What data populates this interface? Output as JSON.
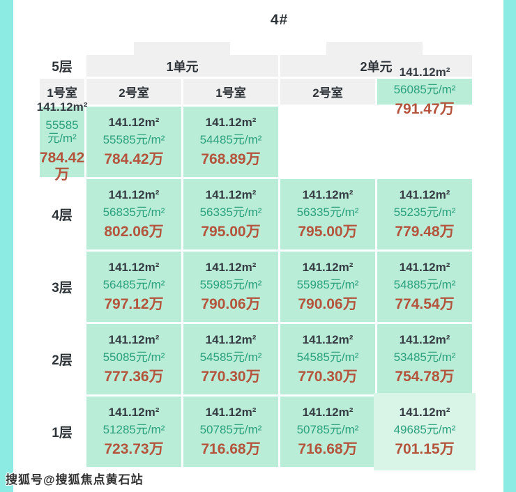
{
  "chart_data": {
    "type": "table",
    "title": "4#",
    "unit_headers": [
      {
        "label": "1单元"
      },
      {
        "label": "2单元"
      }
    ],
    "room_headers": [
      "1号室",
      "2号室",
      "1号室",
      "2号室"
    ],
    "rows": [
      {
        "floor": "5层",
        "cells": [
          {
            "area": "141.12m²",
            "unit_price": "56085元/m²",
            "total": "791.47万"
          },
          {
            "area": "141.12m²",
            "unit_price": "55585元/m²",
            "total": "784.42万"
          },
          {
            "area": "141.12m²",
            "unit_price": "55585元/m²",
            "total": "784.42万"
          },
          {
            "area": "141.12m²",
            "unit_price": "54485元/m²",
            "total": "768.89万"
          }
        ]
      },
      {
        "floor": "4层",
        "cells": [
          {
            "area": "141.12m²",
            "unit_price": "56835元/m²",
            "total": "802.06万"
          },
          {
            "area": "141.12m²",
            "unit_price": "56335元/m²",
            "total": "795.00万"
          },
          {
            "area": "141.12m²",
            "unit_price": "56335元/m²",
            "total": "795.00万"
          },
          {
            "area": "141.12m²",
            "unit_price": "55235元/m²",
            "total": "779.48万"
          }
        ]
      },
      {
        "floor": "3层",
        "cells": [
          {
            "area": "141.12m²",
            "unit_price": "56485元/m²",
            "total": "797.12万"
          },
          {
            "area": "141.12m²",
            "unit_price": "55985元/m²",
            "total": "790.06万"
          },
          {
            "area": "141.12m²",
            "unit_price": "55985元/m²",
            "total": "790.06万"
          },
          {
            "area": "141.12m²",
            "unit_price": "54885元/m²",
            "total": "774.54万"
          }
        ]
      },
      {
        "floor": "2层",
        "cells": [
          {
            "area": "141.12m²",
            "unit_price": "55085元/m²",
            "total": "777.36万"
          },
          {
            "area": "141.12m²",
            "unit_price": "54585元/m²",
            "total": "770.30万"
          },
          {
            "area": "141.12m²",
            "unit_price": "54585元/m²",
            "total": "770.30万"
          },
          {
            "area": "141.12m²",
            "unit_price": "53485元/m²",
            "total": "754.78万"
          }
        ]
      },
      {
        "floor": "1层",
        "cells": [
          {
            "area": "141.12m²",
            "unit_price": "51285元/m²",
            "total": "723.73万"
          },
          {
            "area": "141.12m²",
            "unit_price": "50785元/m²",
            "total": "716.68万"
          },
          {
            "area": "141.12m²",
            "unit_price": "50785元/m²",
            "total": "716.68万"
          },
          {
            "area": "141.12m²",
            "unit_price": "49685元/m²",
            "total": "701.15万"
          }
        ]
      }
    ],
    "highlighted_cell": {
      "floor": "1层",
      "unit": "2单元",
      "room": "2号室"
    },
    "layout_hints": {
      "column_groups": [
        "1单元",
        "2单元"
      ],
      "row_header": "floor",
      "grid": "off"
    }
  },
  "watermark": "搜狐号@搜狐焦点黄石站",
  "colors": {
    "accent_strip": "#8cebe2",
    "cell_bg": "#b9edd7",
    "cell_bg_highlight": "#d9f5e8",
    "header_bg": "#f0f0f1",
    "area_text": "#363c43",
    "unit_price_text": "#2ba17e",
    "total_price_text": "#b4543d"
  }
}
